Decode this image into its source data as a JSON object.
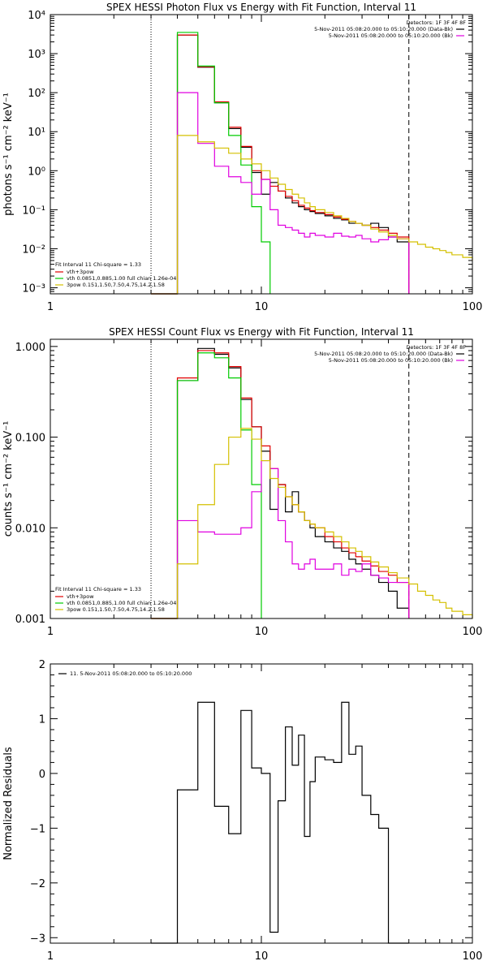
{
  "chart_data": [
    {
      "type": "line",
      "title": "SPEX HESSI Photon Flux vs Energy with Fit Function, Interval 11",
      "xlabel": "",
      "ylabel": "photons s⁻¹ cm⁻² keV⁻¹",
      "xscale": "log",
      "yscale": "log",
      "xlim": [
        1,
        100
      ],
      "ylim": [
        0.0007,
        10000
      ],
      "xticks": [
        {
          "v": 1,
          "label": "1"
        },
        {
          "v": 10,
          "label": "10"
        },
        {
          "v": 100,
          "label": "100"
        }
      ],
      "yticks": [
        {
          "v": 10000,
          "label": "10⁴"
        },
        {
          "v": 1000,
          "label": "10³"
        },
        {
          "v": 100,
          "label": "10²"
        },
        {
          "v": 10,
          "label": "10¹"
        },
        {
          "v": 1,
          "label": "10⁰"
        },
        {
          "v": 0.1,
          "label": "10⁻¹"
        },
        {
          "v": 0.01,
          "label": "10⁻²"
        },
        {
          "v": 0.001,
          "label": "10⁻³"
        }
      ],
      "vlines": [
        {
          "x": 3,
          "style": "dotted"
        },
        {
          "x": 50,
          "style": "dashed"
        }
      ],
      "legend_top": {
        "header": "Detectors: 1F 3F 4F 8F",
        "entries": [
          {
            "label": "5-Nov-2011 05:08:20.000 to 05:10:20.000 (Data-Bk)",
            "color": "#000000"
          },
          {
            "label": "5-Nov-2011 05:08:20.000 to 05:10:20.000 (Bk)",
            "color": "#e000e0"
          }
        ]
      },
      "legend_bottom": {
        "header": "Fit Interval 11   Chi-square = 1.33",
        "entries": [
          {
            "label": "vth+3pow",
            "color": "#e00000"
          },
          {
            "label": "vth 0.0851,0.885,1.00  full chian 1.26e-04",
            "color": "#00cc00"
          },
          {
            "label": "3pow 0.151,1.50,7.50,4.75,14.2,1.58",
            "color": "#d4c000"
          }
        ]
      },
      "series": [
        {
          "color": "#000000",
          "x": [
            3,
            4,
            5,
            6,
            7,
            8,
            9,
            10,
            11,
            12,
            13,
            14,
            15,
            16,
            17,
            18,
            20,
            22,
            24,
            26,
            28,
            30,
            33,
            36,
            40,
            44,
            50
          ],
          "y": [
            0.0007,
            3000,
            450,
            55,
            12,
            4,
            0.9,
            0.25,
            0.5,
            0.3,
            0.2,
            0.15,
            0.12,
            0.1,
            0.09,
            0.08,
            0.07,
            0.06,
            0.055,
            0.045,
            0.045,
            0.04,
            0.045,
            0.035,
            0.02,
            0.015,
            0.0007
          ]
        },
        {
          "color": "#e00000",
          "x": [
            3,
            4,
            5,
            6,
            7,
            8,
            9,
            10,
            11,
            12,
            13,
            14,
            15,
            16,
            17,
            18,
            20,
            22,
            24,
            26,
            28,
            30,
            33,
            36,
            40,
            44,
            50
          ],
          "y": [
            0.0007,
            3000,
            460,
            58,
            13,
            4.2,
            1,
            0.6,
            0.4,
            0.3,
            0.22,
            0.17,
            0.13,
            0.11,
            0.095,
            0.085,
            0.075,
            0.065,
            0.057,
            0.05,
            0.045,
            0.04,
            0.035,
            0.03,
            0.025,
            0.02,
            0.0007
          ]
        },
        {
          "color": "#00cc00",
          "x": [
            3,
            4,
            5,
            6,
            7,
            8,
            9,
            10,
            11
          ],
          "y": [
            0.0007,
            3500,
            480,
            55,
            8,
            1.4,
            0.12,
            0.015,
            0.0007
          ]
        },
        {
          "color": "#e000e0",
          "x": [
            3,
            4,
            5,
            6,
            7,
            8,
            9,
            10,
            11,
            12,
            13,
            14,
            15,
            16,
            17,
            18,
            20,
            22,
            24,
            26,
            28,
            30,
            33,
            36,
            40,
            44,
            50
          ],
          "y": [
            0.0007,
            100,
            5,
            1.3,
            0.7,
            0.5,
            0.25,
            0.6,
            0.1,
            0.04,
            0.035,
            0.03,
            0.025,
            0.02,
            0.025,
            0.022,
            0.02,
            0.025,
            0.021,
            0.02,
            0.022,
            0.018,
            0.015,
            0.017,
            0.02,
            0.018,
            0.0007
          ]
        },
        {
          "color": "#d4c000",
          "x": [
            3,
            4,
            5,
            6,
            7,
            8,
            9,
            10,
            11,
            12,
            13,
            14,
            15,
            16,
            17,
            18,
            20,
            22,
            24,
            26,
            28,
            30,
            33,
            36,
            40,
            44,
            50,
            55,
            60,
            65,
            70,
            75,
            80,
            90,
            100
          ],
          "y": [
            0.0007,
            8,
            5.5,
            3.8,
            2.8,
            2,
            1.5,
            1,
            0.65,
            0.45,
            0.33,
            0.25,
            0.2,
            0.15,
            0.12,
            0.1,
            0.085,
            0.07,
            0.06,
            0.05,
            0.045,
            0.04,
            0.032,
            0.027,
            0.022,
            0.018,
            0.015,
            0.013,
            0.011,
            0.01,
            0.009,
            0.008,
            0.007,
            0.006,
            0.005
          ]
        }
      ]
    },
    {
      "type": "line",
      "title": "SPEX HESSI Count Flux vs Energy with Fit Function, Interval 11",
      "xlabel": "",
      "ylabel": "counts s⁻¹ cm⁻² keV⁻¹",
      "xscale": "log",
      "yscale": "log",
      "xlim": [
        1,
        100
      ],
      "ylim": [
        0.001,
        1.2
      ],
      "xticks": [
        {
          "v": 1,
          "label": "1"
        },
        {
          "v": 10,
          "label": "10"
        },
        {
          "v": 100,
          "label": "100"
        }
      ],
      "yticks": [
        {
          "v": 1,
          "label": "1.000"
        },
        {
          "v": 0.1,
          "label": "0.100"
        },
        {
          "v": 0.01,
          "label": "0.010"
        },
        {
          "v": 0.001,
          "label": "0.001"
        }
      ],
      "vlines": [
        {
          "x": 3,
          "style": "dotted"
        },
        {
          "x": 50,
          "style": "dashed"
        }
      ],
      "legend_top": {
        "header": "Detectors: 1F 3F 4F 8F",
        "entries": [
          {
            "label": "5-Nov-2011 05:08:20.000 to 05:10:20.000 (Data-Bk)",
            "color": "#000000"
          },
          {
            "label": "5-Nov-2011 05:08:20.000 to 05:10:20.000 (Bk)",
            "color": "#e000e0"
          }
        ]
      },
      "legend_bottom": {
        "header": "Fit Interval 11   Chi-square = 1.33",
        "entries": [
          {
            "label": "vth+3pow",
            "color": "#e00000"
          },
          {
            "label": "vth 0.0851,0.885,1.00  full chian 1.26e-04",
            "color": "#00cc00"
          },
          {
            "label": "3pow 0.151,1.50,7.50,4.75,14.2,1.58",
            "color": "#d4c000"
          }
        ]
      },
      "series": [
        {
          "color": "#000000",
          "x": [
            3,
            4,
            5,
            6,
            7,
            8,
            9,
            10,
            11,
            12,
            13,
            14,
            15,
            16,
            17,
            18,
            20,
            22,
            24,
            26,
            28,
            30,
            33,
            36,
            40,
            44,
            50
          ],
          "y": [
            0.001,
            0.42,
            0.95,
            0.82,
            0.58,
            0.26,
            0.13,
            0.07,
            0.016,
            0.03,
            0.015,
            0.025,
            0.015,
            0.012,
            0.01,
            0.008,
            0.007,
            0.006,
            0.0055,
            0.0045,
            0.004,
            0.0035,
            0.003,
            0.0025,
            0.002,
            0.0013,
            0.001
          ]
        },
        {
          "color": "#e00000",
          "x": [
            3,
            4,
            5,
            6,
            7,
            8,
            9,
            10,
            11,
            12,
            13,
            14,
            15,
            16,
            17,
            18,
            20,
            22,
            24,
            26,
            28,
            30,
            33,
            36,
            40,
            44,
            50
          ],
          "y": [
            0.001,
            0.45,
            0.9,
            0.85,
            0.6,
            0.27,
            0.13,
            0.08,
            0.045,
            0.03,
            0.022,
            0.018,
            0.015,
            0.012,
            0.011,
            0.01,
            0.008,
            0.007,
            0.006,
            0.0053,
            0.0048,
            0.0043,
            0.0038,
            0.0033,
            0.003,
            0.0025,
            0.001
          ]
        },
        {
          "color": "#00cc00",
          "x": [
            3,
            4,
            5,
            6,
            7,
            8,
            9,
            10
          ],
          "y": [
            0.001,
            0.42,
            0.85,
            0.75,
            0.45,
            0.12,
            0.03,
            0.001
          ]
        },
        {
          "color": "#e000e0",
          "x": [
            3,
            4,
            5,
            6,
            7,
            8,
            9,
            10,
            11,
            12,
            13,
            14,
            15,
            16,
            17,
            18,
            20,
            22,
            24,
            26,
            28,
            30,
            33,
            36,
            40,
            44,
            50
          ],
          "y": [
            0.001,
            0.012,
            0.009,
            0.0085,
            0.0085,
            0.01,
            0.025,
            0.055,
            0.045,
            0.012,
            0.007,
            0.004,
            0.0035,
            0.004,
            0.0045,
            0.0035,
            0.0035,
            0.004,
            0.003,
            0.0035,
            0.0033,
            0.004,
            0.003,
            0.0028,
            0.0025,
            0.0025,
            0.001
          ]
        },
        {
          "color": "#d4c000",
          "x": [
            3,
            4,
            5,
            6,
            7,
            8,
            9,
            10,
            11,
            12,
            13,
            14,
            15,
            16,
            17,
            18,
            20,
            22,
            24,
            26,
            28,
            30,
            33,
            36,
            40,
            44,
            50,
            55,
            60,
            65,
            70,
            75,
            80,
            90,
            100
          ],
          "y": [
            0.001,
            0.004,
            0.018,
            0.05,
            0.1,
            0.125,
            0.095,
            0.055,
            0.035,
            0.028,
            0.022,
            0.018,
            0.015,
            0.012,
            0.011,
            0.01,
            0.009,
            0.008,
            0.007,
            0.006,
            0.0055,
            0.0048,
            0.0042,
            0.0037,
            0.0032,
            0.0028,
            0.0024,
            0.002,
            0.0018,
            0.0016,
            0.0015,
            0.0013,
            0.0012,
            0.0011,
            0.001
          ]
        }
      ]
    },
    {
      "type": "line",
      "title": "",
      "xlabel": "",
      "ylabel": "Normalized Residuals",
      "xscale": "log",
      "yscale": "linear",
      "xlim": [
        1,
        100
      ],
      "ylim": [
        -3.1,
        2
      ],
      "xticks": [
        {
          "v": 1,
          "label": "1"
        },
        {
          "v": 10,
          "label": "10"
        },
        {
          "v": 100,
          "label": "100"
        }
      ],
      "yticks": [
        {
          "v": 2,
          "label": "2"
        },
        {
          "v": 1,
          "label": "1"
        },
        {
          "v": 0,
          "label": "0"
        },
        {
          "v": -1,
          "label": "−1"
        },
        {
          "v": -2,
          "label": "−2"
        },
        {
          "v": -3,
          "label": "−3"
        }
      ],
      "vlines": [],
      "legend_top": {
        "header": "",
        "entries": [
          {
            "label": "11.  5-Nov-2011 05:08:20.000 to 05:10:20.000",
            "color": "#000000"
          }
        ]
      },
      "legend_bottom": {
        "header": "",
        "entries": []
      },
      "series": [
        {
          "color": "#000000",
          "x": [
            3,
            4,
            5,
            6,
            7,
            8,
            9,
            10,
            11,
            12,
            13,
            14,
            15,
            16,
            17,
            18,
            20,
            22,
            24,
            26,
            28,
            30,
            33,
            36,
            40,
            44,
            50
          ],
          "y": [
            -3.1,
            -0.3,
            1.3,
            -0.6,
            -1.1,
            1.15,
            0.1,
            0,
            -2.9,
            -0.5,
            0.85,
            0.15,
            0.7,
            -1.15,
            -0.15,
            0.3,
            0.25,
            0.2,
            1.3,
            0.35,
            0.5,
            -0.4,
            -0.75,
            -1,
            -3.1,
            -3.1,
            -3.1
          ]
        }
      ]
    }
  ]
}
